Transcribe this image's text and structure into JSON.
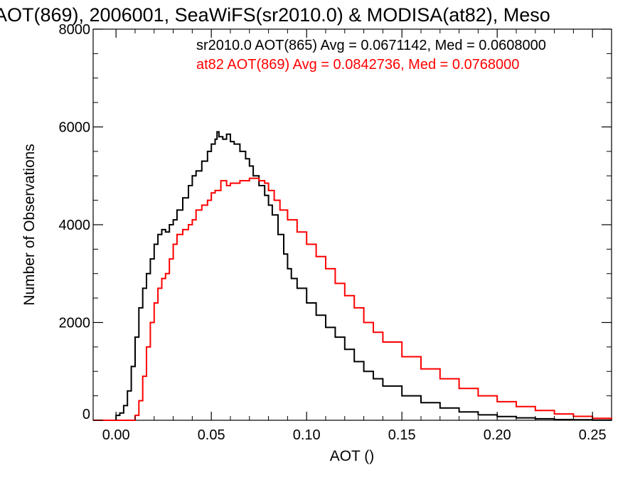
{
  "chart_data": {
    "type": "line",
    "title": "AOT(869), 2006001, SeaWiFS(sr2010.0) & MODISA(at82), Meso",
    "xlabel": "AOT ()",
    "ylabel": "Number of Observations",
    "xlim": [
      -0.012,
      0.26
    ],
    "ylim": [
      0,
      8000
    ],
    "x_ticks": [
      0.0,
      0.05,
      0.1,
      0.15,
      0.2,
      0.25
    ],
    "x_tick_labels": [
      "0.00",
      "0.05",
      "0.10",
      "0.15",
      "0.20",
      "0.25"
    ],
    "y_ticks": [
      0,
      2000,
      4000,
      6000,
      8000
    ],
    "y_tick_labels": [
      "0",
      "2000",
      "4000",
      "6000",
      "8000"
    ],
    "step": true,
    "grid": false,
    "legend": "none",
    "annotations": [
      {
        "text": "sr2010.0 AOT(865) Avg = 0.0671142, Med = 0.0608000",
        "color": "#000000"
      },
      {
        "text": "at82 AOT(869) Avg = 0.0842736, Med = 0.0768000",
        "color": "#ff0000"
      }
    ],
    "series": [
      {
        "color": "#000000",
        "x": [
          -0.004,
          0.0,
          0.002,
          0.004,
          0.006,
          0.008,
          0.01,
          0.012,
          0.014,
          0.016,
          0.018,
          0.02,
          0.022,
          0.024,
          0.026,
          0.028,
          0.03,
          0.032,
          0.035,
          0.038,
          0.04,
          0.042,
          0.045,
          0.048,
          0.05,
          0.052,
          0.053,
          0.054,
          0.056,
          0.058,
          0.06,
          0.062,
          0.065,
          0.068,
          0.07,
          0.072,
          0.075,
          0.078,
          0.08,
          0.082,
          0.085,
          0.088,
          0.09,
          0.092,
          0.095,
          0.1,
          0.105,
          0.11,
          0.115,
          0.12,
          0.125,
          0.13,
          0.135,
          0.14,
          0.15,
          0.16,
          0.17,
          0.18,
          0.19,
          0.2,
          0.21,
          0.22,
          0.23,
          0.24,
          0.25,
          0.26
        ],
        "y": [
          0,
          100,
          150,
          300,
          600,
          1100,
          1700,
          2300,
          2700,
          3000,
          3300,
          3600,
          3800,
          3900,
          3850,
          4000,
          4100,
          4300,
          4550,
          4800,
          5000,
          5100,
          5300,
          5500,
          5650,
          5750,
          5900,
          5800,
          5750,
          5850,
          5700,
          5650,
          5500,
          5350,
          5200,
          5000,
          4800,
          4600,
          4400,
          4200,
          3800,
          3400,
          3100,
          2900,
          2700,
          2400,
          2150,
          1900,
          1700,
          1450,
          1200,
          1000,
          850,
          700,
          500,
          360,
          250,
          170,
          110,
          75,
          50,
          30,
          15,
          10,
          5,
          0
        ]
      },
      {
        "color": "#ff0000",
        "x": [
          -0.012,
          0.01,
          0.012,
          0.014,
          0.016,
          0.018,
          0.02,
          0.022,
          0.024,
          0.026,
          0.028,
          0.03,
          0.032,
          0.035,
          0.038,
          0.04,
          0.042,
          0.045,
          0.048,
          0.05,
          0.052,
          0.055,
          0.058,
          0.06,
          0.065,
          0.07,
          0.075,
          0.078,
          0.08,
          0.083,
          0.086,
          0.09,
          0.095,
          0.1,
          0.105,
          0.11,
          0.115,
          0.12,
          0.125,
          0.13,
          0.135,
          0.14,
          0.15,
          0.16,
          0.17,
          0.18,
          0.19,
          0.2,
          0.21,
          0.22,
          0.23,
          0.24,
          0.25,
          0.26
        ],
        "y": [
          0,
          100,
          400,
          900,
          1500,
          2000,
          2400,
          2700,
          2900,
          3000,
          3300,
          3600,
          3800,
          3900,
          4000,
          4100,
          4300,
          4400,
          4500,
          4650,
          4700,
          4900,
          4800,
          4850,
          4900,
          4950,
          4900,
          4850,
          4700,
          4500,
          4300,
          4100,
          3850,
          3600,
          3350,
          3100,
          2800,
          2550,
          2300,
          2000,
          1800,
          1600,
          1300,
          1050,
          850,
          650,
          500,
          380,
          280,
          200,
          130,
          80,
          40,
          20
        ]
      }
    ]
  }
}
